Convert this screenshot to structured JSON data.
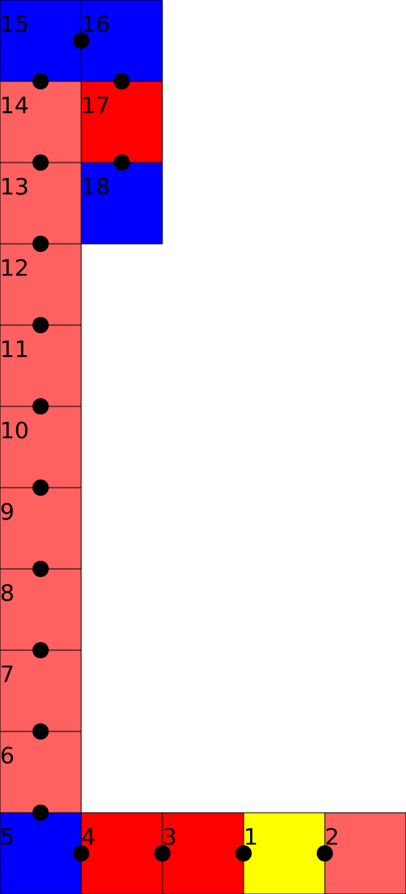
{
  "colors": {
    "red": "#ff0000",
    "salmon": "#ff6060",
    "blue": "#0000ff",
    "yellow": "#ffff00",
    "dot": "#000000"
  },
  "cells": [
    {
      "label": "1",
      "color": "yellow"
    },
    {
      "label": "2",
      "color": "salmon"
    },
    {
      "label": "3",
      "color": "red"
    },
    {
      "label": "4",
      "color": "red"
    },
    {
      "label": "5",
      "color": "blue"
    },
    {
      "label": "6",
      "color": "salmon"
    },
    {
      "label": "7",
      "color": "salmon"
    },
    {
      "label": "8",
      "color": "salmon"
    },
    {
      "label": "9",
      "color": "salmon"
    },
    {
      "label": "10",
      "color": "salmon"
    },
    {
      "label": "11",
      "color": "salmon"
    },
    {
      "label": "12",
      "color": "salmon"
    },
    {
      "label": "13",
      "color": "salmon"
    },
    {
      "label": "14",
      "color": "salmon"
    },
    {
      "label": "15",
      "color": "blue"
    },
    {
      "label": "16",
      "color": "blue"
    },
    {
      "label": "17",
      "color": "red"
    },
    {
      "label": "18",
      "color": "blue"
    }
  ]
}
